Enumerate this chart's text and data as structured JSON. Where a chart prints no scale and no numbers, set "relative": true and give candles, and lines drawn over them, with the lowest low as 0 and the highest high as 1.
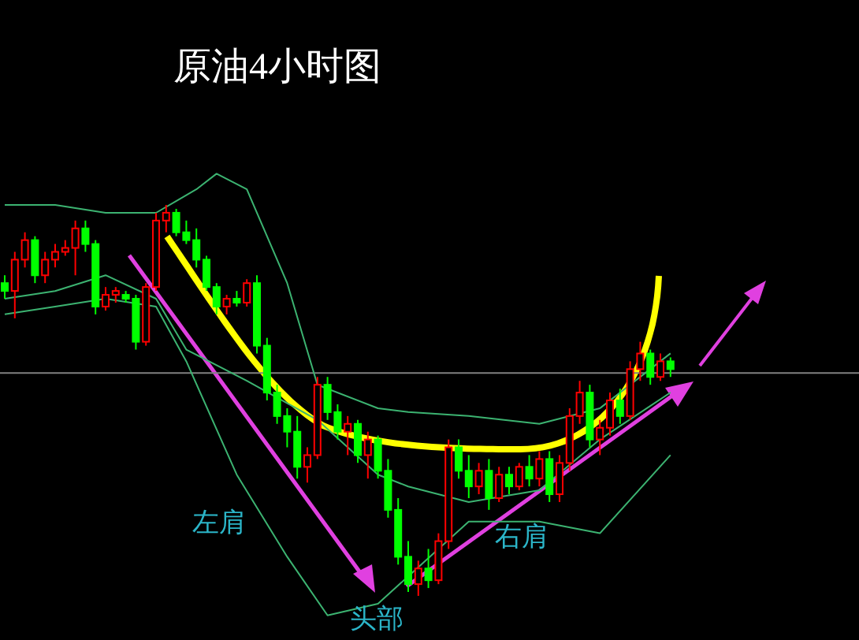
{
  "chart_data": {
    "type": "candlestick",
    "title": "原油4小时图",
    "relative": true,
    "categories": [
      null,
      null,
      null,
      null,
      null,
      null,
      null,
      null,
      null,
      null,
      null,
      null,
      null,
      null,
      null,
      null,
      null,
      null,
      null,
      null,
      null,
      null,
      null,
      null,
      null,
      null,
      null,
      null,
      null,
      null,
      null,
      null,
      null,
      null,
      null,
      null,
      null,
      null,
      null,
      null,
      null,
      null,
      null,
      null,
      null,
      null,
      null,
      null,
      null,
      null,
      null,
      null,
      null,
      null,
      null,
      null,
      null,
      null,
      null,
      null,
      null,
      null,
      null,
      null,
      null,
      null,
      null
    ],
    "ohlc": [
      [
        0.8,
        0.82,
        0.76,
        0.78
      ],
      [
        0.78,
        0.88,
        0.71,
        0.86
      ],
      [
        0.86,
        0.93,
        0.84,
        0.91
      ],
      [
        0.91,
        0.92,
        0.8,
        0.82
      ],
      [
        0.82,
        0.88,
        0.8,
        0.86
      ],
      [
        0.86,
        0.9,
        0.84,
        0.88
      ],
      [
        0.88,
        0.91,
        0.87,
        0.89
      ],
      [
        0.89,
        0.96,
        0.82,
        0.94
      ],
      [
        0.94,
        0.96,
        0.88,
        0.9
      ],
      [
        0.9,
        0.91,
        0.72,
        0.74
      ],
      [
        0.74,
        0.79,
        0.73,
        0.77
      ],
      [
        0.77,
        0.79,
        0.75,
        0.78
      ],
      [
        0.77,
        0.78,
        0.75,
        0.76
      ],
      [
        0.76,
        0.77,
        0.63,
        0.65
      ],
      [
        0.65,
        0.8,
        0.64,
        0.79
      ],
      [
        0.79,
        0.98,
        0.78,
        0.96
      ],
      [
        0.96,
        1.0,
        0.93,
        0.98
      ],
      [
        0.98,
        0.99,
        0.92,
        0.93
      ],
      [
        0.93,
        0.96,
        0.9,
        0.91
      ],
      [
        0.91,
        0.94,
        0.84,
        0.86
      ],
      [
        0.86,
        0.87,
        0.78,
        0.79
      ],
      [
        0.79,
        0.8,
        0.72,
        0.74
      ],
      [
        0.74,
        0.77,
        0.72,
        0.76
      ],
      [
        0.76,
        0.78,
        0.74,
        0.75
      ],
      [
        0.75,
        0.81,
        0.74,
        0.8
      ],
      [
        0.8,
        0.82,
        0.62,
        0.64
      ],
      [
        0.64,
        0.66,
        0.5,
        0.52
      ],
      [
        0.52,
        0.54,
        0.44,
        0.46
      ],
      [
        0.46,
        0.48,
        0.38,
        0.42
      ],
      [
        0.42,
        0.46,
        0.3,
        0.33
      ],
      [
        0.33,
        0.38,
        0.29,
        0.36
      ],
      [
        0.36,
        0.56,
        0.35,
        0.54
      ],
      [
        0.54,
        0.56,
        0.45,
        0.47
      ],
      [
        0.47,
        0.49,
        0.4,
        0.42
      ],
      [
        0.42,
        0.46,
        0.36,
        0.44
      ],
      [
        0.44,
        0.45,
        0.34,
        0.36
      ],
      [
        0.36,
        0.42,
        0.3,
        0.4
      ],
      [
        0.4,
        0.41,
        0.3,
        0.32
      ],
      [
        0.32,
        0.35,
        0.2,
        0.22
      ],
      [
        0.22,
        0.25,
        0.08,
        0.1
      ],
      [
        0.1,
        0.14,
        0.01,
        0.03
      ],
      [
        0.03,
        0.09,
        0.0,
        0.07
      ],
      [
        0.07,
        0.12,
        0.02,
        0.04
      ],
      [
        0.04,
        0.16,
        0.03,
        0.14
      ],
      [
        0.14,
        0.4,
        0.12,
        0.38
      ],
      [
        0.38,
        0.4,
        0.3,
        0.32
      ],
      [
        0.32,
        0.36,
        0.25,
        0.28
      ],
      [
        0.28,
        0.34,
        0.26,
        0.32
      ],
      [
        0.32,
        0.35,
        0.22,
        0.25
      ],
      [
        0.25,
        0.33,
        0.24,
        0.31
      ],
      [
        0.31,
        0.33,
        0.26,
        0.28
      ],
      [
        0.28,
        0.34,
        0.27,
        0.33
      ],
      [
        0.33,
        0.36,
        0.28,
        0.3
      ],
      [
        0.3,
        0.37,
        0.28,
        0.35
      ],
      [
        0.35,
        0.37,
        0.24,
        0.26
      ],
      [
        0.26,
        0.36,
        0.24,
        0.34
      ],
      [
        0.34,
        0.48,
        0.32,
        0.46
      ],
      [
        0.46,
        0.55,
        0.44,
        0.52
      ],
      [
        0.52,
        0.54,
        0.38,
        0.4
      ],
      [
        0.4,
        0.45,
        0.36,
        0.43
      ],
      [
        0.43,
        0.52,
        0.41,
        0.5
      ],
      [
        0.5,
        0.53,
        0.44,
        0.46
      ],
      [
        0.46,
        0.6,
        0.45,
        0.58
      ],
      [
        0.58,
        0.65,
        0.55,
        0.62
      ],
      [
        0.62,
        0.63,
        0.54,
        0.56
      ],
      [
        0.56,
        0.62,
        0.55,
        0.6
      ],
      [
        0.6,
        0.61,
        0.56,
        0.58
      ]
    ],
    "colors": [
      "#00ff00",
      "#ff0000",
      "#ff0000",
      "#00ff00",
      "#ff0000",
      "#ff0000",
      "#ff0000",
      "#ff0000",
      "#00ff00",
      "#00ff00",
      "#ff0000",
      "#ff0000",
      "#00ff00",
      "#00ff00",
      "#ff0000",
      "#ff0000",
      "#ff0000",
      "#00ff00",
      "#00ff00",
      "#00ff00",
      "#00ff00",
      "#00ff00",
      "#ff0000",
      "#00ff00",
      "#ff0000",
      "#00ff00",
      "#00ff00",
      "#00ff00",
      "#00ff00",
      "#00ff00",
      "#ff0000",
      "#ff0000",
      "#00ff00",
      "#00ff00",
      "#ff0000",
      "#00ff00",
      "#ff0000",
      "#00ff00",
      "#00ff00",
      "#00ff00",
      "#00ff00",
      "#ff0000",
      "#00ff00",
      "#ff0000",
      "#ff0000",
      "#00ff00",
      "#00ff00",
      "#ff0000",
      "#00ff00",
      "#ff0000",
      "#00ff00",
      "#ff0000",
      "#00ff00",
      "#ff0000",
      "#00ff00",
      "#ff0000",
      "#ff0000",
      "#ff0000",
      "#00ff00",
      "#ff0000",
      "#ff0000",
      "#00ff00",
      "#ff0000",
      "#ff0000",
      "#00ff00",
      "#ff0000",
      "#00ff00"
    ],
    "series": [
      {
        "type": "line",
        "color": "#3cb371",
        "values": [
          1.0,
          null,
          null,
          null,
          null,
          1.0,
          null,
          null,
          null,
          null,
          0.98,
          null,
          null,
          null,
          null,
          0.98,
          null,
          null,
          null,
          1.04,
          null,
          1.08,
          null,
          null,
          1.04,
          null,
          null,
          null,
          0.8,
          null,
          null,
          0.54,
          null,
          null,
          null,
          null,
          null,
          0.48,
          null,
          null,
          0.47,
          null,
          null,
          null,
          null,
          null,
          0.46,
          null,
          null,
          null,
          null,
          null,
          null,
          0.44,
          null,
          null,
          null,
          null,
          null,
          0.48,
          null,
          null,
          null,
          null,
          null,
          null,
          0.62
        ]
      },
      {
        "type": "line",
        "color": "#3cb371",
        "values": [
          0.76,
          null,
          null,
          null,
          null,
          0.78,
          null,
          null,
          null,
          null,
          0.82,
          null,
          null,
          null,
          null,
          0.76,
          null,
          null,
          0.63,
          null,
          null,
          null,
          null,
          null,
          0.55,
          null,
          null,
          null,
          null,
          null,
          null,
          0.45,
          null,
          null,
          null,
          null,
          null,
          0.31,
          null,
          null,
          0.28,
          null,
          null,
          null,
          null,
          null,
          0.24,
          null,
          null,
          null,
          null,
          null,
          null,
          0.27,
          null,
          null,
          null,
          null,
          null,
          0.4,
          null,
          null,
          null,
          null,
          null,
          null,
          0.52
        ]
      },
      {
        "type": "line",
        "color": "#3cb371",
        "values": [
          0.72,
          null,
          null,
          null,
          null,
          0.74,
          null,
          null,
          null,
          null,
          0.76,
          null,
          null,
          null,
          null,
          0.74,
          null,
          null,
          0.6,
          null,
          null,
          null,
          null,
          0.31,
          null,
          null,
          null,
          null,
          0.1,
          null,
          null,
          null,
          -0.05,
          null,
          null,
          null,
          null,
          -0.02,
          null,
          null,
          0.05,
          null,
          null,
          null,
          null,
          null,
          0.19,
          null,
          null,
          null,
          null,
          null,
          null,
          0.19,
          null,
          null,
          null,
          null,
          null,
          0.16,
          null,
          null,
          null,
          null,
          null,
          null,
          0.36
        ]
      }
    ],
    "ref_lines": [
      {
        "axis": "y",
        "value": 0.57,
        "color": "#808080"
      }
    ],
    "annotations": [
      "左肩",
      "头部",
      "右肩"
    ]
  }
}
